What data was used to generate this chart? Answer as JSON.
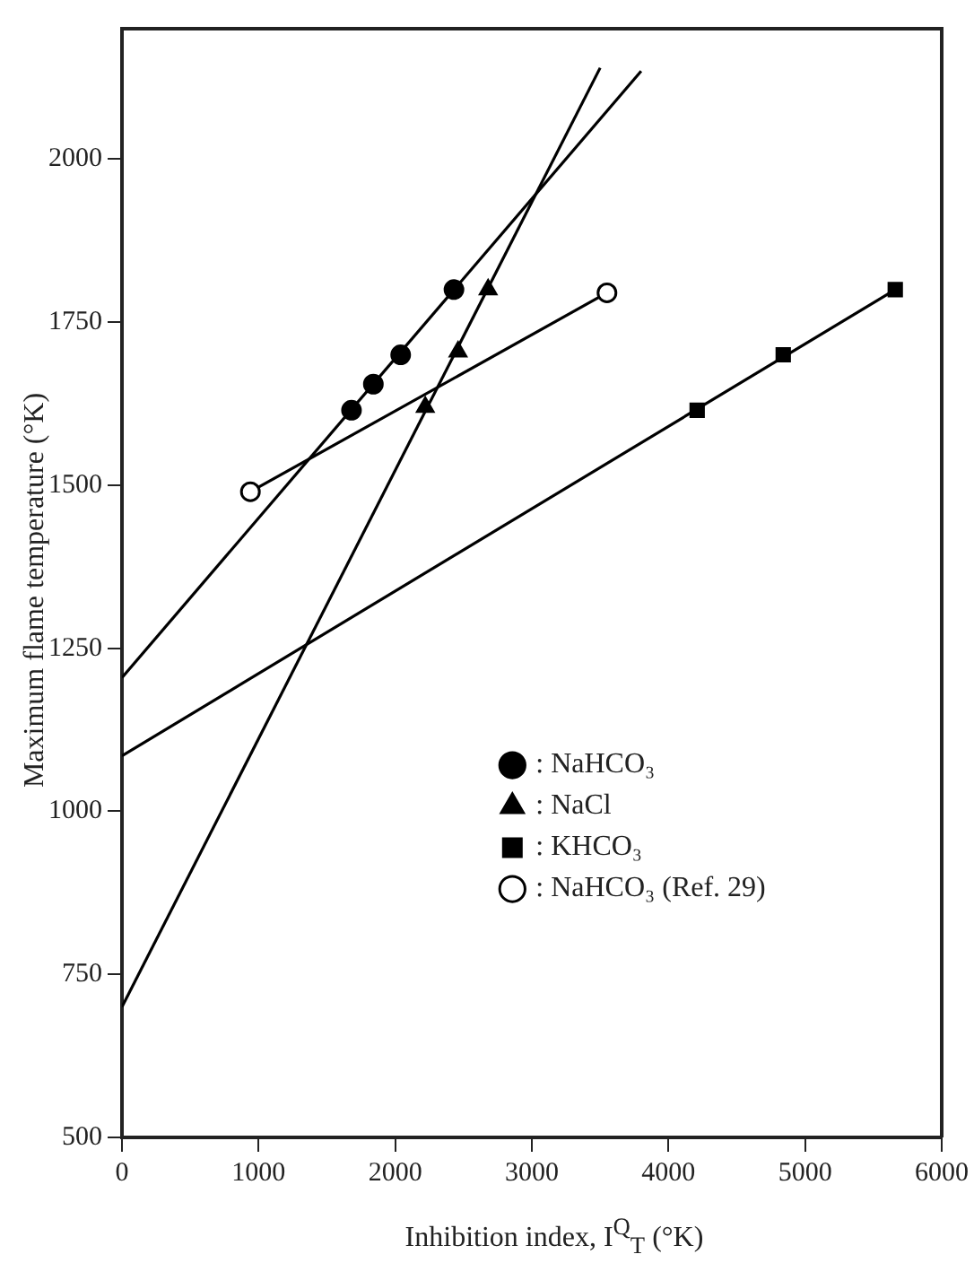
{
  "chart_data": {
    "type": "scatter",
    "xlabel": "Inhibition index, I$^{Q}$$_{T}$ (°K)",
    "ylabel": "Maximum flame temperature (°K)",
    "xlim": [
      0,
      6000
    ],
    "xticks": [
      0,
      1000,
      2000,
      3000,
      4000,
      5000,
      6000
    ],
    "ylim": [
      500,
      2200
    ],
    "yticks": [
      500,
      750,
      1000,
      1250,
      1500,
      1750,
      2000
    ],
    "grid": false,
    "legend": "bottom right",
    "series": [
      {
        "name": ": NaHCO₃",
        "marker": "circle",
        "color": "#000000",
        "x": [
          1680,
          1840,
          2040,
          2430
        ],
        "values": [
          1615,
          1655,
          1700,
          1800
        ]
      },
      {
        "name": ": NaCl",
        "marker": "triangle",
        "color": "#000000",
        "x": [
          2220,
          2460,
          2680
        ],
        "values": [
          1620,
          1705,
          1800
        ]
      },
      {
        "name": ": KHCO₃",
        "marker": "square",
        "color": "#000000",
        "x": [
          4210,
          4840,
          5660
        ],
        "values": [
          1615,
          1700,
          1800
        ]
      },
      {
        "name": ": NaHCO₃ (Ref. 29)",
        "marker": "circle",
        "color": "#ffffff",
        "x": [
          940,
          3550
        ],
        "values": [
          1490,
          1795
        ]
      },
      {
        "type": "line",
        "marker": "none",
        "color": "#000000",
        "x": [
          940,
          3550
        ],
        "values": [
          1490,
          1795
        ]
      },
      {
        "type": "line",
        "marker": "none",
        "color": "#000000",
        "x": [
          0,
          3800
        ],
        "values": [
          1205,
          2135
        ]
      },
      {
        "type": "line",
        "marker": "none",
        "color": "#000000",
        "x": [
          0,
          3500
        ],
        "values": [
          700,
          2140
        ]
      },
      {
        "type": "line",
        "marker": "none",
        "color": "#000000",
        "x": [
          0,
          5660
        ],
        "values": [
          1085,
          1800
        ]
      }
    ]
  }
}
